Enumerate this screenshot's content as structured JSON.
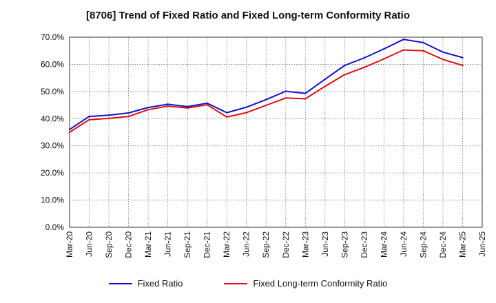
{
  "chart_data": {
    "type": "line",
    "title": "[8706]  Trend of Fixed Ratio and Fixed Long-term Conformity Ratio",
    "xlabel": "",
    "ylabel": "",
    "ylim": [
      0,
      70
    ],
    "yticks": [
      "0.0%",
      "10.0%",
      "20.0%",
      "30.0%",
      "40.0%",
      "50.0%",
      "60.0%",
      "70.0%"
    ],
    "categories": [
      "Mar-20",
      "Jun-20",
      "Sep-20",
      "Dec-20",
      "Mar-21",
      "Jun-21",
      "Sep-21",
      "Dec-21",
      "Mar-22",
      "Jun-22",
      "Sep-22",
      "Dec-22",
      "Mar-23",
      "Jun-23",
      "Sep-23",
      "Dec-23",
      "Mar-24",
      "Jun-24",
      "Sep-24",
      "Dec-24",
      "Mar-25",
      "Jun-25"
    ],
    "grid": true,
    "legend_position": "bottom",
    "series": [
      {
        "name": "Fixed Ratio",
        "color": "#1010cc",
        "values": [
          36.0,
          40.8,
          41.3,
          42.1,
          44.1,
          45.3,
          44.4,
          45.7,
          42.2,
          44.2,
          47.0,
          50.1,
          49.3,
          54.5,
          59.6,
          62.4,
          65.7,
          69.2,
          68.0,
          64.5,
          62.5,
          null
        ]
      },
      {
        "name": "Fixed Long-term Conformity Ratio",
        "color": "#dd0f0f",
        "values": [
          35.0,
          39.6,
          40.1,
          40.8,
          43.3,
          44.6,
          43.9,
          45.1,
          40.6,
          42.2,
          44.9,
          47.6,
          47.3,
          51.9,
          56.2,
          58.9,
          62.0,
          65.3,
          65.0,
          61.8,
          59.6,
          null
        ]
      }
    ]
  }
}
